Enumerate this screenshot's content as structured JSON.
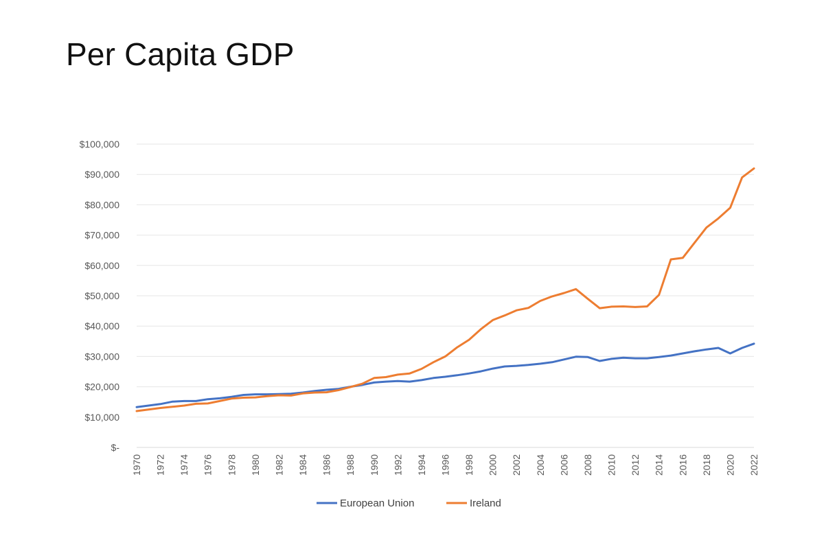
{
  "slide": {
    "title": "Per Capita GDP"
  },
  "chart_data": {
    "type": "line",
    "title": "",
    "xlabel": "",
    "ylabel": "",
    "x": [
      1970,
      1971,
      1972,
      1973,
      1974,
      1975,
      1976,
      1977,
      1978,
      1979,
      1980,
      1981,
      1982,
      1983,
      1984,
      1985,
      1986,
      1987,
      1988,
      1989,
      1990,
      1991,
      1992,
      1993,
      1994,
      1995,
      1996,
      1997,
      1998,
      1999,
      2000,
      2001,
      2002,
      2003,
      2004,
      2005,
      2006,
      2007,
      2008,
      2009,
      2010,
      2011,
      2012,
      2013,
      2014,
      2015,
      2016,
      2017,
      2018,
      2019,
      2020,
      2021,
      2022
    ],
    "x_tick_labels": [
      "1970",
      "1972",
      "1974",
      "1976",
      "1978",
      "1980",
      "1982",
      "1984",
      "1986",
      "1988",
      "1990",
      "1992",
      "1994",
      "1996",
      "1998",
      "2000",
      "2002",
      "2004",
      "2006",
      "2008",
      "2010",
      "2012",
      "2014",
      "2016",
      "2018",
      "2020",
      "2022"
    ],
    "y_tick_labels": [
      "$-",
      "$10,000",
      "$20,000",
      "$30,000",
      "$40,000",
      "$50,000",
      "$60,000",
      "$70,000",
      "$80,000",
      "$90,000",
      "$100,000"
    ],
    "ylim": [
      0,
      100000
    ],
    "grid": true,
    "legend_position": "bottom",
    "series": [
      {
        "name": "European Union",
        "color": "#4472c4",
        "values": [
          13300,
          13800,
          14300,
          15100,
          15300,
          15300,
          15900,
          16200,
          16700,
          17300,
          17500,
          17500,
          17600,
          17700,
          18100,
          18600,
          19000,
          19300,
          20000,
          20600,
          21400,
          21700,
          21900,
          21700,
          22200,
          22900,
          23300,
          23800,
          24400,
          25100,
          26000,
          26700,
          26900,
          27200,
          27600,
          28100,
          29000,
          29900,
          29800,
          28500,
          29200,
          29600,
          29400,
          29400,
          29800,
          30300,
          31000,
          31700,
          32300,
          32800,
          31000,
          32800,
          34200
        ]
      },
      {
        "name": "Ireland",
        "color": "#ed7d31",
        "values": [
          12000,
          12500,
          13000,
          13400,
          13800,
          14400,
          14500,
          15300,
          16100,
          16400,
          16500,
          16900,
          17200,
          17100,
          17800,
          18100,
          18200,
          18900,
          19900,
          21000,
          22900,
          23200,
          24000,
          24400,
          25900,
          28100,
          30000,
          33000,
          35500,
          39000,
          42000,
          43500,
          45200,
          46000,
          48300,
          49800,
          50900,
          52200,
          49000,
          45900,
          46400,
          46500,
          46300,
          46500,
          50300,
          62000,
          62500,
          67500,
          72500,
          75500,
          79000,
          89000,
          92000
        ]
      }
    ]
  }
}
